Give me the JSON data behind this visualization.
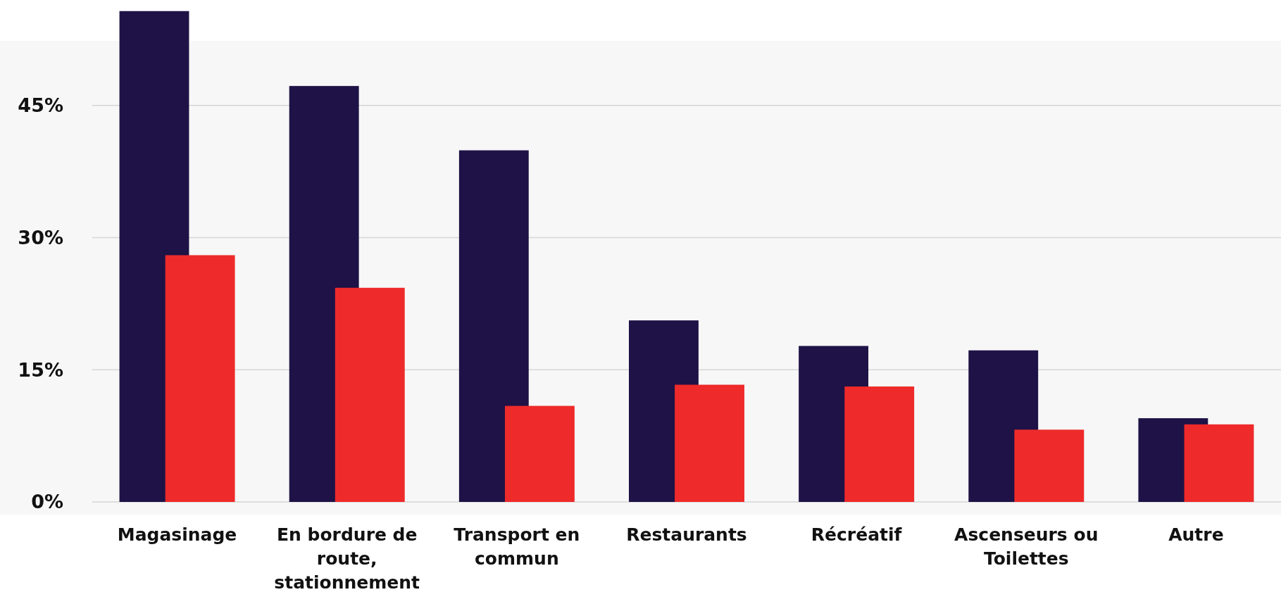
{
  "chart_data": {
    "type": "bar",
    "categories": [
      "Magasinage",
      "En bordure de route, stationnement",
      "Transport en commun",
      "Restaurants",
      "Récréatif",
      "Ascenseurs ou Toilettes",
      "Autre"
    ],
    "series": [
      {
        "color": "#1e1246",
        "values": [
          55.7,
          47.2,
          39.9,
          20.6,
          17.7,
          17.2,
          9.5
        ]
      },
      {
        "color": "#ee2a2a",
        "values": [
          28.0,
          24.3,
          10.9,
          13.3,
          13.1,
          8.2,
          8.8
        ]
      }
    ],
    "ylim": [
      0,
      56
    ],
    "yticks": [
      {
        "value": 0,
        "label": "0%"
      },
      {
        "value": 15,
        "label": "15%"
      },
      {
        "value": 30,
        "label": "30%"
      },
      {
        "value": 45,
        "label": "45%"
      }
    ],
    "grid": "y"
  }
}
